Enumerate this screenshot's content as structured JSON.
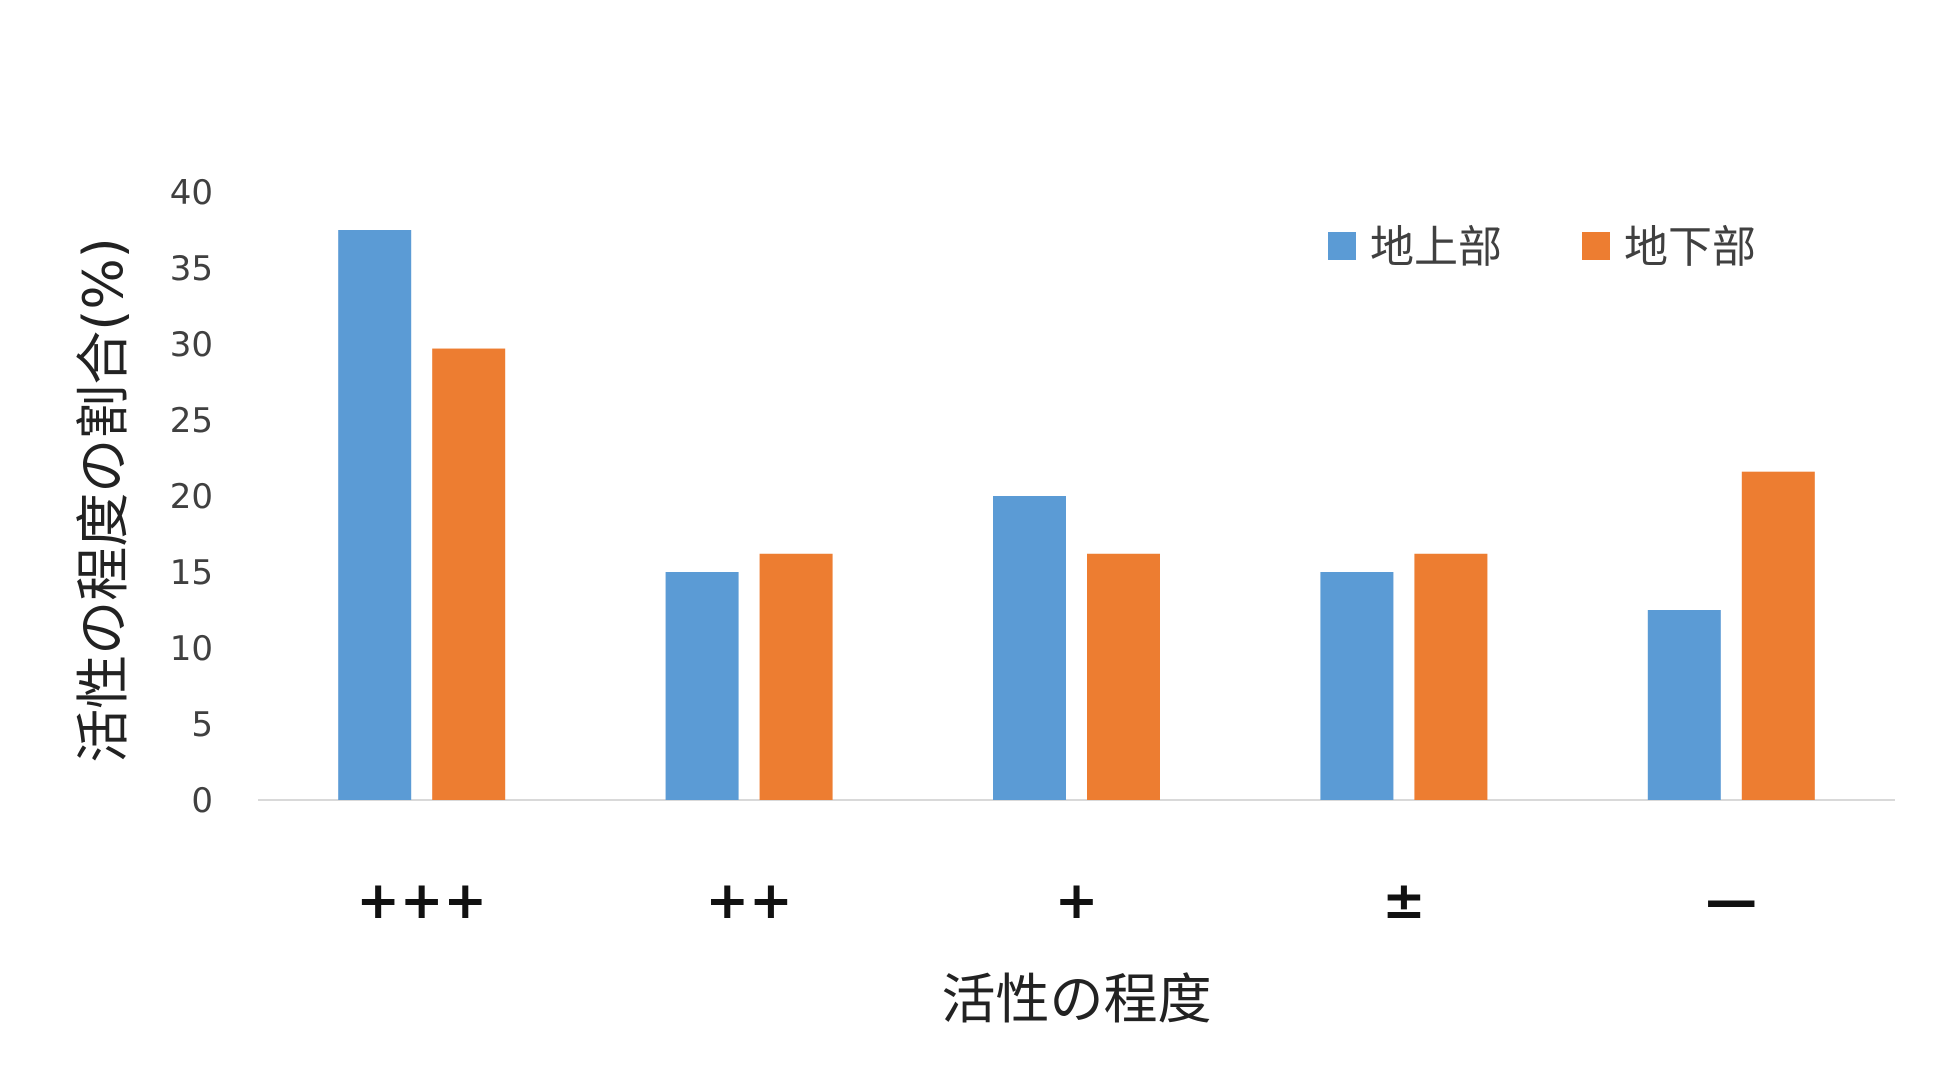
{
  "chart_data": {
    "type": "bar",
    "categories": [
      "+++",
      "++",
      "+",
      "±",
      "—"
    ],
    "series": [
      {
        "name": "地上部",
        "color": "#5B9BD5",
        "values": [
          37.5,
          15,
          20,
          15,
          12.5
        ]
      },
      {
        "name": "地下部",
        "color": "#ED7D31",
        "values": [
          29.7,
          16.2,
          16.2,
          16.2,
          21.6
        ]
      }
    ],
    "xlabel": "活性の程度",
    "ylabel": "活性の程度の割合(%)",
    "ylim": [
      0,
      40
    ],
    "yticks": [
      0,
      5,
      10,
      15,
      20,
      25,
      30,
      35,
      40
    ],
    "grid": false,
    "legend": "top-right"
  }
}
